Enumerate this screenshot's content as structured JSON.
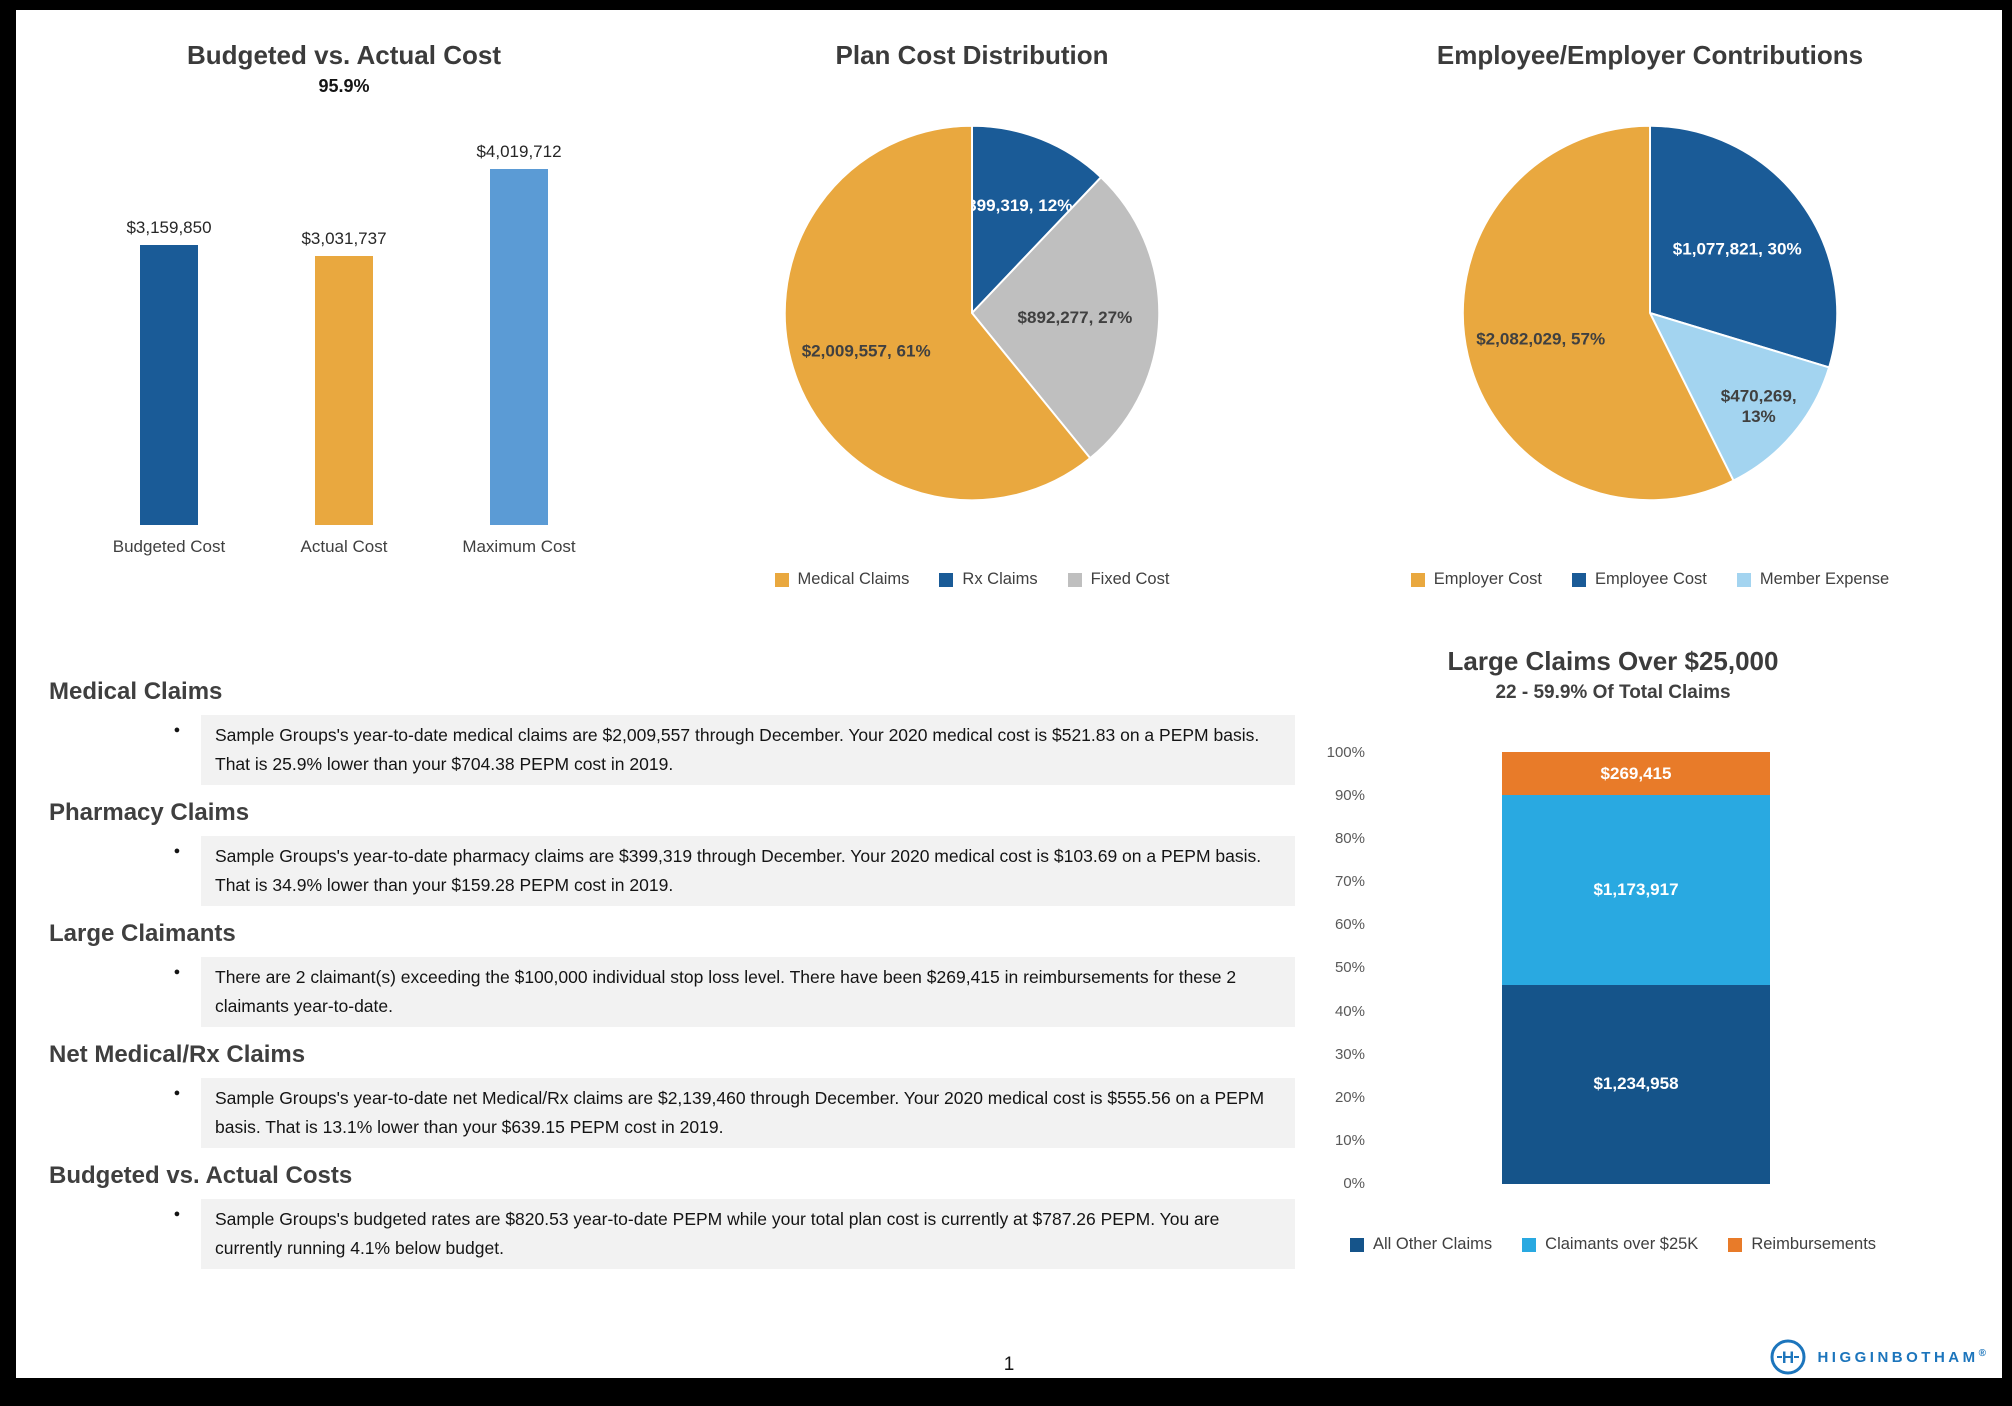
{
  "page": {
    "number": "1",
    "footer_brand": "HIGGINBOTHAM",
    "footer_brand_mark": "®"
  },
  "chart_data": [
    {
      "id": "budget_bar",
      "type": "bar",
      "title": "Budgeted vs. Actual Cost",
      "subtitle": "95.9%",
      "categories": [
        "Budgeted Cost",
        "Actual Cost",
        "Maximum Cost"
      ],
      "values": [
        3159850,
        3031737,
        4019712
      ],
      "value_labels": [
        "$3,159,850",
        "$3,031,737",
        "$4,019,712"
      ],
      "colors": [
        "#1a5b97",
        "#e9a83f",
        "#5b9bd5"
      ],
      "xlabel": "",
      "ylabel": "",
      "ylim": [
        0,
        4019712
      ],
      "grid": false,
      "legend_position": "none"
    },
    {
      "id": "plan_pie",
      "type": "pie",
      "title": "Plan Cost Distribution",
      "slices": [
        {
          "name": "Rx Claims",
          "value": 399319,
          "pct": 12,
          "label": "$399,319, 12%",
          "color": "#1a5b97",
          "label_color": "#ffffff",
          "label_r": 0.62
        },
        {
          "name": "Fixed Cost",
          "value": 892277,
          "pct": 27,
          "label": "$892,277, 27%",
          "color": "#bfbfbf",
          "label_color": "#404040",
          "label_r": 0.55
        },
        {
          "name": "Medical Claims",
          "value": 2009557,
          "pct": 61,
          "label": "$2,009,557, 61%",
          "color": "#e9a83f",
          "label_color": "#404040",
          "label_r": 0.6
        }
      ],
      "legend": [
        {
          "name": "Medical Claims",
          "color": "#e9a83f"
        },
        {
          "name": "Rx Claims",
          "color": "#1a5b97"
        },
        {
          "name": "Fixed Cost",
          "color": "#bfbfbf"
        }
      ],
      "legend_position": "bottom"
    },
    {
      "id": "contrib_pie",
      "type": "pie",
      "title": "Employee/Employer Contributions",
      "slices": [
        {
          "name": "Employee Cost",
          "value": 1077821,
          "pct": 30,
          "label": "$1,077,821, 30%",
          "color": "#1a5b97",
          "label_color": "#ffffff",
          "label_r": 0.58
        },
        {
          "name": "Member Expense",
          "value": 470269,
          "pct": 13,
          "label": "$470,269,\n13%",
          "color": "#a3d4f0",
          "label_color": "#404040",
          "label_r": 0.76
        },
        {
          "name": "Employer Cost",
          "value": 2082029,
          "pct": 57,
          "label": "$2,082,029, 57%",
          "color": "#e9a83f",
          "label_color": "#404040",
          "label_r": 0.6
        }
      ],
      "legend": [
        {
          "name": "Employer Cost",
          "color": "#e9a83f"
        },
        {
          "name": "Employee Cost",
          "color": "#1a5b97"
        },
        {
          "name": "Member Expense",
          "color": "#a3d4f0"
        }
      ],
      "legend_position": "bottom"
    },
    {
      "id": "large_claims",
      "type": "stacked-bar",
      "title": "Large Claims Over $25,000",
      "subtitle": "22 - 59.9% Of Total Claims",
      "segments": [
        {
          "name": "All Other Claims",
          "value": 1234958,
          "label": "$1,234,958",
          "color": "#15548a"
        },
        {
          "name": "Claimants over $25K",
          "value": 1173917,
          "label": "$1,173,917",
          "color": "#29a9e1"
        },
        {
          "name": "Reimbursements",
          "value": 269415,
          "label": "$269,415",
          "color": "#e87b29"
        }
      ],
      "y_ticks": [
        "100%",
        "90%",
        "80%",
        "70%",
        "60%",
        "50%",
        "40%",
        "30%",
        "20%",
        "10%",
        "0%"
      ],
      "ylim": [
        0,
        100
      ],
      "grid": false,
      "legend": [
        {
          "name": "All Other Claims",
          "color": "#15548a"
        },
        {
          "name": "Claimants over $25K",
          "color": "#29a9e1"
        },
        {
          "name": "Reimbursements",
          "color": "#e87b29"
        }
      ],
      "legend_position": "bottom"
    }
  ],
  "sections": [
    {
      "heading": "Medical Claims",
      "text": "Sample Groups's year-to-date medical claims are $2,009,557 through December. Your 2020 medical cost is $521.83 on a PEPM basis. That is 25.9% lower than your $704.38 PEPM cost in 2019."
    },
    {
      "heading": "Pharmacy Claims",
      "text": "Sample Groups's year-to-date pharmacy claims are $399,319 through December. Your 2020 medical cost is $103.69 on a PEPM basis. That is 34.9% lower than your $159.28 PEPM cost in 2019."
    },
    {
      "heading": "Large Claimants",
      "text": "There are 2 claimant(s) exceeding the $100,000 individual stop loss level. There have been $269,415 in reimbursements for these 2 claimants year-to-date."
    },
    {
      "heading": "Net Medical/Rx Claims",
      "text": "Sample Groups's year-to-date net Medical/Rx claims are $2,139,460 through December. Your 2020 medical cost is $555.56 on a PEPM basis. That is 13.1% lower than your $639.15 PEPM cost in 2019."
    },
    {
      "heading": "Budgeted vs. Actual Costs",
      "text": "Sample Groups's budgeted rates are $820.53 year-to-date PEPM while your total plan cost is currently at $787.26 PEPM. You are currently running 4.1% below budget."
    }
  ]
}
